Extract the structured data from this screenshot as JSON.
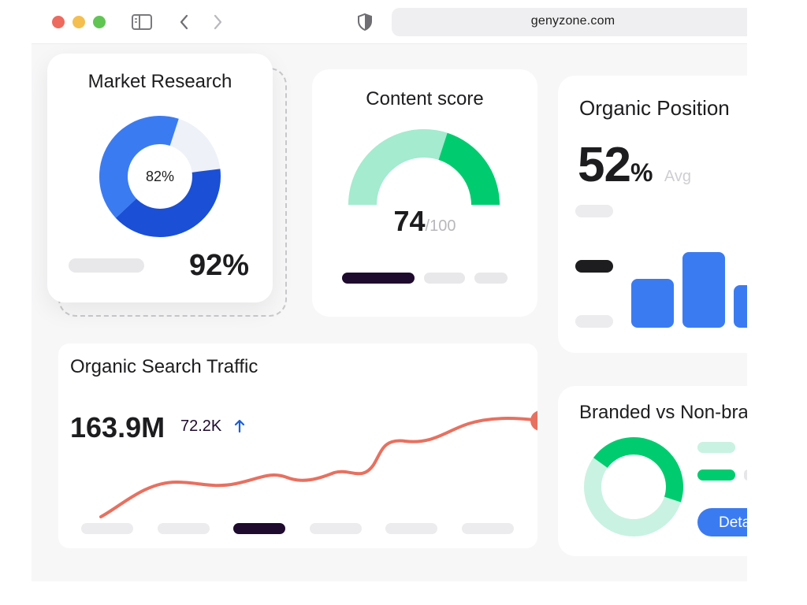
{
  "browser": {
    "url": "genyzone.com",
    "traffic_lights": [
      "#ed6a5e",
      "#f4bf4f",
      "#61c554"
    ],
    "icons": [
      "sidebar-toggle-icon",
      "back-chevron-icon",
      "forward-chevron-icon",
      "shield-icon"
    ]
  },
  "market_research": {
    "title": "Market Research",
    "donut_label": "82%",
    "donut_fraction": 0.82,
    "big_value": "92%",
    "colors": [
      "#3b7bf2",
      "#1a4fd6",
      "#eef1f8"
    ]
  },
  "content_score": {
    "title": "Content score",
    "score": "74",
    "total": "/100",
    "fraction": 0.74,
    "colors": [
      "#00cc6f",
      "#a4ebd0",
      "#d5f5e8"
    ]
  },
  "organic_position": {
    "title": "Organic Position",
    "value": "52",
    "unit": "%",
    "suffix": "Avg",
    "bar_color": "#3b7bf2"
  },
  "organic_traffic": {
    "title": "Organic Search Traffic",
    "value": "163.9M",
    "delta": "72.2K",
    "delta_icon": "arrow-up-icon",
    "line_color": "#e8705f",
    "selected_period_index": 2
  },
  "branded": {
    "title": "Branded vs Non-branded",
    "button_label": "Details",
    "donut_fraction": 0.45,
    "colors": [
      "#00cc6f",
      "#c9f2e2"
    ]
  }
}
